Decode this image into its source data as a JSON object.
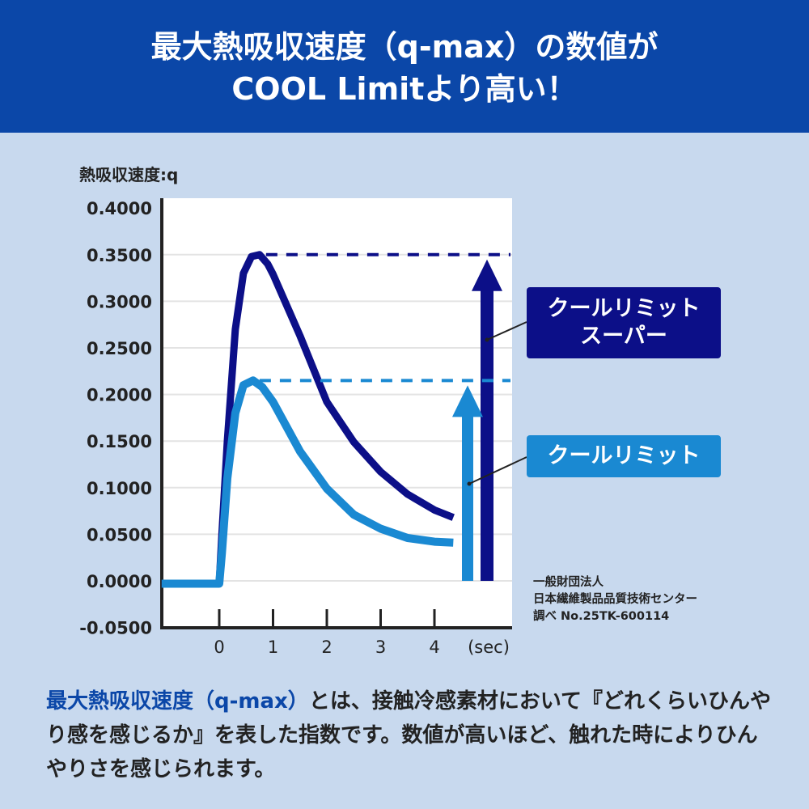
{
  "header": {
    "line1": "最大熱吸収速度（q-max）の数値が",
    "line2": "COOL Limitより高い！"
  },
  "colors": {
    "header_bg": "#0b47a8",
    "page_bg": "#c8d9ee",
    "cool_limit_super": "#0c0f88",
    "cool_limit": "#1a89d2"
  },
  "legend": {
    "super_label_1": "クールリミット",
    "super_label_2": "スーパー",
    "standard_label": "クールリミット"
  },
  "source": {
    "line1": "一般財団法人",
    "line2": "日本繊維製品品質技術センター",
    "line3": "調べ No.25TK-600114"
  },
  "description": {
    "emphasis": "最大熱吸収速度（q-max）",
    "text": "とは、接触冷感素材において『どれくらいひんやり感を感じるか』を表した指数です。数値が高いほど、触れた時によりひんやりさを感じられます。"
  },
  "chart_data": {
    "type": "line",
    "ylabel": "熱吸収速度:q",
    "xunit": "(sec)",
    "xlim": [
      -1.07,
      5.45
    ],
    "ylim": [
      -0.05,
      0.4
    ],
    "grid": true,
    "xticks": [
      "0",
      "1",
      "2",
      "3",
      "4"
    ],
    "yticks": [
      "0.4000",
      "0.3500",
      "0.3000",
      "0.2500",
      "0.2000",
      "0.1500",
      "0.1000",
      "0.0500",
      "0.0000",
      "-0.0500"
    ],
    "series": [
      {
        "name": "クールリミットスーパー",
        "color": "#0c0f88",
        "q_max": 0.35,
        "x": [
          -1.07,
          0,
          0.05,
          0.15,
          0.3,
          0.45,
          0.6,
          0.75,
          0.9,
          1.0,
          1.5,
          2.0,
          2.5,
          3.0,
          3.5,
          4.0,
          4.35
        ],
        "y": [
          -0.003,
          -0.003,
          0.05,
          0.15,
          0.27,
          0.33,
          0.348,
          0.35,
          0.34,
          0.329,
          0.263,
          0.192,
          0.149,
          0.117,
          0.093,
          0.076,
          0.068
        ]
      },
      {
        "name": "クールリミット",
        "color": "#1a89d2",
        "q_max": 0.215,
        "x": [
          -1.07,
          0,
          0.05,
          0.15,
          0.3,
          0.45,
          0.63,
          0.8,
          1.0,
          1.5,
          2.0,
          2.5,
          3.0,
          3.5,
          4.0,
          4.35
        ],
        "y": [
          -0.003,
          -0.003,
          0.03,
          0.11,
          0.18,
          0.21,
          0.215,
          0.208,
          0.192,
          0.139,
          0.099,
          0.071,
          0.056,
          0.046,
          0.042,
          0.041
        ]
      }
    ]
  }
}
